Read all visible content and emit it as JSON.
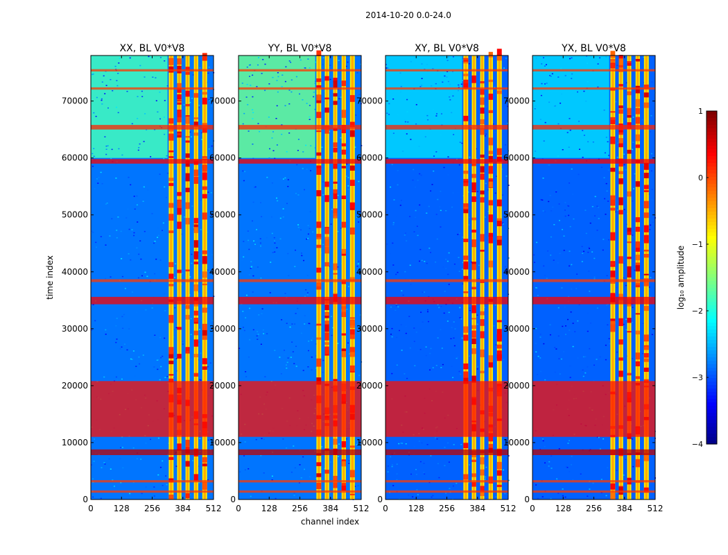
{
  "chart_data": {
    "type": "heatmap",
    "suptitle": "2014-10-20 0.0-24.0",
    "xlabel": "channel index",
    "ylabel": "time index",
    "xlim": [
      0,
      512
    ],
    "ylim": [
      0,
      78000
    ],
    "x_ticks": [
      0,
      128,
      256,
      384,
      512
    ],
    "y_ticks": [
      0,
      10000,
      20000,
      30000,
      40000,
      50000,
      60000,
      70000
    ],
    "colormap": "jet",
    "colorbar": {
      "label": "log₁₀ amplitude",
      "range": [
        -4,
        1
      ],
      "ticks": [
        1,
        0,
        -1,
        -2,
        -3,
        -4
      ],
      "tick_labels": [
        "1",
        "0",
        "−1",
        "−2",
        "−3",
        "−4"
      ]
    },
    "panels": [
      {
        "title": "XX, BL V0*V8",
        "background_level": -2.8,
        "upper_level": -1.8,
        "bright_columns": [
          [
            325,
            345
          ],
          [
            360,
            378
          ],
          [
            395,
            412
          ],
          [
            430,
            448
          ],
          [
            465,
            485
          ]
        ]
      },
      {
        "title": "YY, BL V0*V8",
        "background_level": -2.8,
        "upper_level": -1.6,
        "bright_columns": [
          [
            325,
            345
          ],
          [
            360,
            378
          ],
          [
            395,
            412
          ],
          [
            430,
            448
          ],
          [
            465,
            485
          ]
        ]
      },
      {
        "title": "XY, BL V0*V8",
        "background_level": -2.9,
        "upper_level": -2.3,
        "bright_columns": [
          [
            325,
            345
          ],
          [
            360,
            378
          ],
          [
            395,
            412
          ],
          [
            430,
            448
          ],
          [
            465,
            485
          ]
        ]
      },
      {
        "title": "YX, BL V0*V8",
        "background_level": -2.9,
        "upper_level": -2.3,
        "bright_columns": [
          [
            325,
            345
          ],
          [
            360,
            378
          ],
          [
            395,
            412
          ],
          [
            430,
            448
          ],
          [
            465,
            485
          ]
        ]
      }
    ],
    "horizontal_bands": [
      {
        "t": [
          1200,
          1600
        ],
        "level": 0.1
      },
      {
        "t": [
          3000,
          3400
        ],
        "level": 0.1
      },
      {
        "t": [
          7800,
          8800
        ],
        "level": 0.7
      },
      {
        "t": [
          11000,
          20800
        ],
        "level": 0.3
      },
      {
        "t": [
          34300,
          35600
        ],
        "level": 0.4
      },
      {
        "t": [
          38200,
          38700
        ],
        "level": 0.1
      },
      {
        "t": [
          59000,
          59800
        ],
        "level": 0.4
      },
      {
        "t": [
          65000,
          65800
        ],
        "level": 0.2
      },
      {
        "t": [
          72000,
          72400
        ],
        "level": 0.1
      },
      {
        "t": [
          75200,
          75600
        ],
        "level": 0.1
      }
    ]
  }
}
